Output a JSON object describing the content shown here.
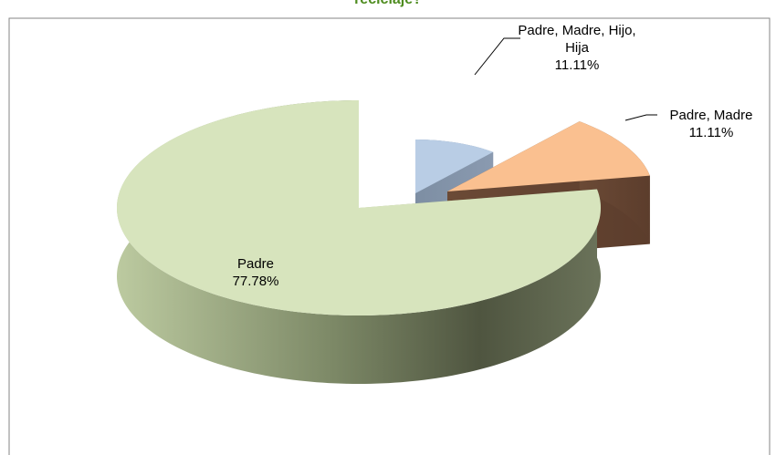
{
  "chart_data": {
    "type": "pie3d",
    "title": "reciclaje?",
    "categories": [
      "Padre, Madre, Hijo, Hija",
      "Padre, Madre",
      "Padre"
    ],
    "values": [
      11.11,
      11.11,
      77.78
    ],
    "value_labels": [
      "11.11%",
      "11.11%",
      "77.78%"
    ],
    "colors": [
      "#b9cde5",
      "#fac090",
      "#d7e4bd"
    ]
  }
}
